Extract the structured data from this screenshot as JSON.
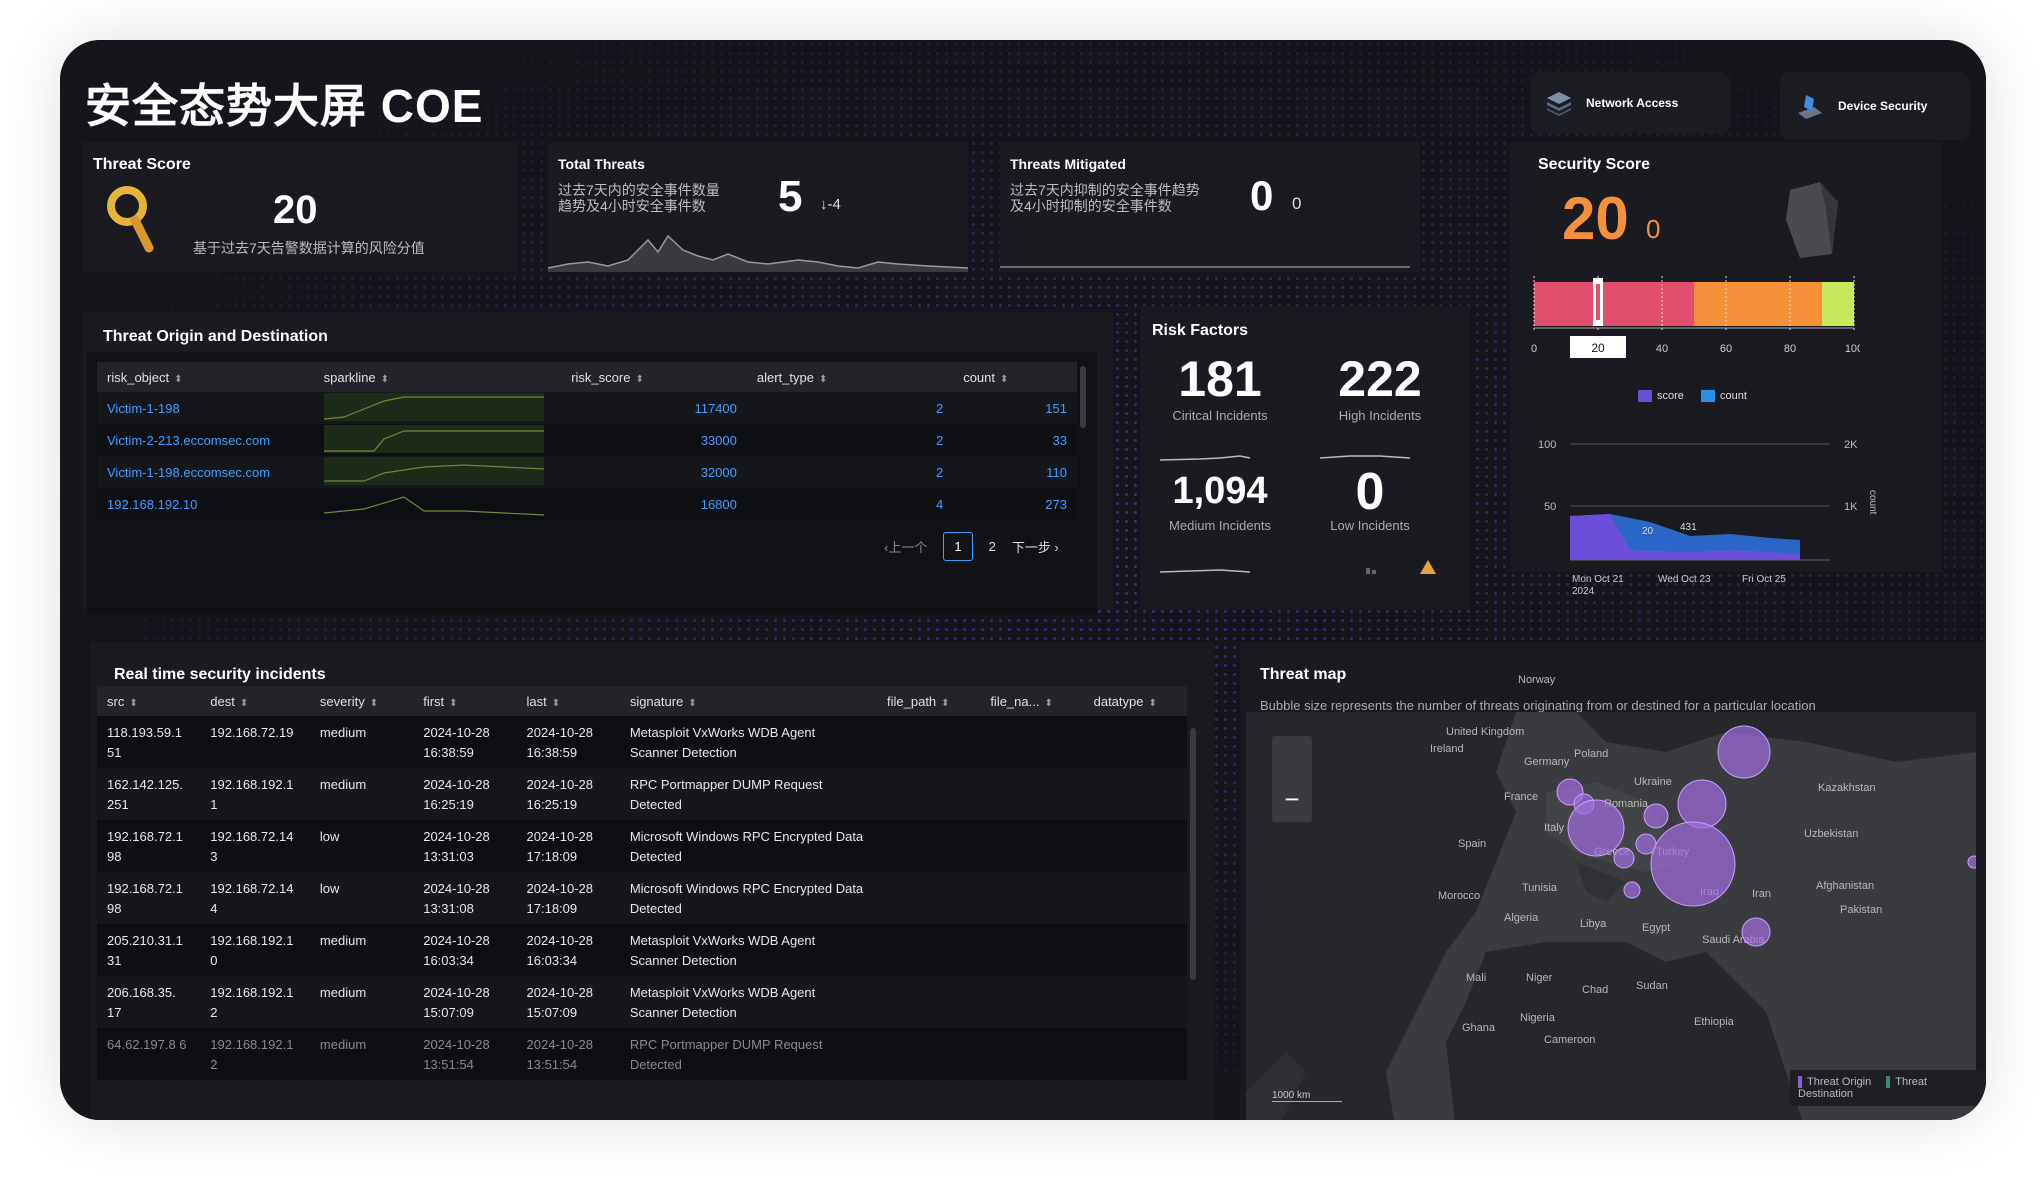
{
  "header": {
    "title": "安全态势大屏 COE",
    "network_access_label": "Network Access",
    "device_security_label": "Device Security"
  },
  "threat_score": {
    "title": "Threat Score",
    "value": "20",
    "desc": "基于过去7天告警数据计算的风险分值"
  },
  "total_threats": {
    "title": "Total Threats",
    "desc_line1": "过去7天内的安全事件数量",
    "desc_line2": "趋势及4小时安全事件数",
    "value": "5",
    "delta": "↓-4"
  },
  "threats_mitigated": {
    "title": "Threats Mitigated",
    "desc_line1": "过去7天内抑制的安全事件趋势",
    "desc_line2": "及4小时抑制的安全事件数",
    "value": "0",
    "delta": "0"
  },
  "security_score": {
    "title": "Security Score",
    "value": "20",
    "delta": "0",
    "gauge_value": 20,
    "gauge_ticks": [
      "0",
      "20",
      "40",
      "60",
      "80",
      "100"
    ],
    "gauge_colors": [
      "#e0506e",
      "#f5903a",
      "#c6e85a"
    ],
    "chart": {
      "legend_score": "score",
      "legend_count": "count",
      "y_left": [
        "100",
        "50"
      ],
      "y_right": [
        "2K",
        "1K"
      ],
      "y_right_label": "count",
      "annot_score": "20",
      "annot_count": "431",
      "x_labels": [
        "Mon Oct 21",
        "Wed Oct 23",
        "Fri Oct 25"
      ],
      "x_year": "2024"
    }
  },
  "origin": {
    "title": "Threat Origin and Destination",
    "headers": [
      "risk_object",
      "sparkline",
      "risk_score",
      "alert_type",
      "count"
    ],
    "rows": [
      {
        "risk_object": "Victim-1-198",
        "risk_score": "117400",
        "alert_type": "2",
        "count": "151"
      },
      {
        "risk_object": "Victim-2-213.eccomsec.com",
        "risk_score": "33000",
        "alert_type": "2",
        "count": "33"
      },
      {
        "risk_object": "Victim-1-198.eccomsec.com",
        "risk_score": "32000",
        "alert_type": "2",
        "count": "110"
      },
      {
        "risk_object": "192.168.192.10",
        "risk_score": "16800",
        "alert_type": "4",
        "count": "273"
      }
    ],
    "pagination": {
      "prev": "‹上一个",
      "page1": "1",
      "page2": "2",
      "next": "下一步 ›"
    }
  },
  "risk_factors": {
    "title": "Risk Factors",
    "critical_value": "181",
    "critical_label": "Ciritcal Incidents",
    "high_value": "222",
    "high_label": "High Incidents",
    "medium_value": "1,094",
    "medium_label": "Medium Incidents",
    "low_value": "0",
    "low_label": "Low Incidents"
  },
  "incidents": {
    "title": "Real time security incidents",
    "headers": [
      "src",
      "dest",
      "severity",
      "first",
      "last",
      "signature",
      "file_path",
      "file_na...",
      "datatype"
    ],
    "rows": [
      {
        "src": "118.193.59.1 51",
        "dest": "192.168.72.19",
        "severity": "medium",
        "first": "2024-10-28 16:38:59",
        "last": "2024-10-28 16:38:59",
        "signature": "Metasploit VxWorks WDB Agent Scanner Detection"
      },
      {
        "src": "162.142.125. 251",
        "dest": "192.168.192.1 1",
        "severity": "medium",
        "first": "2024-10-28 16:25:19",
        "last": "2024-10-28 16:25:19",
        "signature": "RPC Portmapper DUMP Request Detected"
      },
      {
        "src": "192.168.72.1 98",
        "dest": "192.168.72.14 3",
        "severity": "low",
        "first": "2024-10-28 13:31:03",
        "last": "2024-10-28 17:18:09",
        "signature": "Microsoft Windows RPC Encrypted Data Detected"
      },
      {
        "src": "192.168.72.1 98",
        "dest": "192.168.72.14 4",
        "severity": "low",
        "first": "2024-10-28 13:31:08",
        "last": "2024-10-28 17:18:09",
        "signature": "Microsoft Windows RPC Encrypted Data Detected"
      },
      {
        "src": "205.210.31.1 31",
        "dest": "192.168.192.1 0",
        "severity": "medium",
        "first": "2024-10-28 16:03:34",
        "last": "2024-10-28 16:03:34",
        "signature": "Metasploit VxWorks WDB Agent Scanner Detection"
      },
      {
        "src": "206.168.35. 17",
        "dest": "192.168.192.1 2",
        "severity": "medium",
        "first": "2024-10-28 15:07:09",
        "last": "2024-10-28 15:07:09",
        "signature": "Metasploit VxWorks WDB Agent Scanner Detection"
      },
      {
        "src": "64.62.197.8 6",
        "dest": "192.168.192.1 2",
        "severity": "medium",
        "first": "2024-10-28 13:51:54",
        "last": "2024-10-28 13:51:54",
        "signature": "RPC Portmapper DUMP Request Detected"
      }
    ]
  },
  "threat_map": {
    "title": "Threat map",
    "subtitle": "Bubble size represents the number of threats originating from or destined for a particular location",
    "zoom_out": "−",
    "scale": "1000 km",
    "legend_origin": "Threat Origin",
    "legend_destination": "Threat Destination",
    "labels": [
      "Norway",
      "United Kingdom",
      "Ireland",
      "Germany",
      "Poland",
      "France",
      "Ukraine",
      "Kazakhstan",
      "Romania",
      "Italy",
      "Uzbekistan",
      "Spain",
      "Greece",
      "Turkey",
      "Tunisia",
      "Morocco",
      "Iraq",
      "Iran",
      "Afghanistan",
      "Pakistan",
      "Algeria",
      "Libya",
      "Egypt",
      "Saudi Arabia",
      "Mali",
      "Niger",
      "Chad",
      "Sudan",
      "Nigeria",
      "Ethiopia",
      "Ghana",
      "Cameroon"
    ]
  }
}
